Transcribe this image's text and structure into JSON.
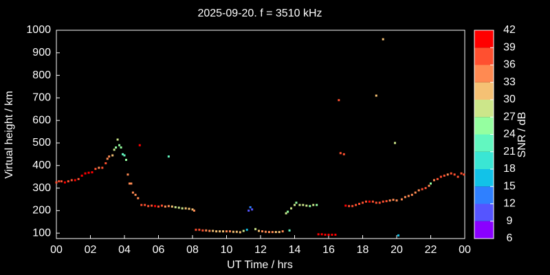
{
  "chart_data": {
    "type": "scatter",
    "title": "2025-09-20. f = 3510 kHz",
    "x_label": "UT Time / hrs",
    "y_label": "Virtual height / km",
    "xlim": [
      0,
      24
    ],
    "xticks": [
      {
        "value": 0,
        "label": "00"
      },
      {
        "value": 2,
        "label": "02"
      },
      {
        "value": 4,
        "label": "04"
      },
      {
        "value": 6,
        "label": "06"
      },
      {
        "value": 8,
        "label": "08"
      },
      10,
      12,
      14,
      16,
      18,
      20,
      22,
      {
        "value": 24,
        "label": "00"
      }
    ],
    "ylim": [
      76,
      1000
    ],
    "yticks": [
      100,
      200,
      300,
      400,
      500,
      600,
      700,
      800,
      900,
      1000
    ],
    "x": [
      0.0,
      0.15,
      0.3,
      0.5,
      0.7,
      0.9,
      1.1,
      1.3,
      1.5,
      1.7,
      1.9,
      2.1,
      2.3,
      2.5,
      2.7,
      2.9,
      3.0,
      3.1,
      3.3,
      3.4,
      3.5,
      3.6,
      3.7,
      3.8,
      3.9,
      4.0,
      4.1,
      4.2,
      4.3,
      4.4,
      4.5,
      4.65,
      4.8,
      4.9,
      5.0,
      5.2,
      5.4,
      5.6,
      5.8,
      6.0,
      6.2,
      6.4,
      6.6,
      6.6,
      6.8,
      7.0,
      7.2,
      7.4,
      7.6,
      7.8,
      8.0,
      8.1,
      8.2,
      8.4,
      8.6,
      8.8,
      9.0,
      9.2,
      9.4,
      9.6,
      9.8,
      10.0,
      10.2,
      10.4,
      10.6,
      10.8,
      11.0,
      11.2,
      11.3,
      11.4,
      11.5,
      11.7,
      11.9,
      12.1,
      12.3,
      12.5,
      12.7,
      12.9,
      13.1,
      13.3,
      13.5,
      13.6,
      13.7,
      13.8,
      14.0,
      14.1,
      14.3,
      14.5,
      14.7,
      14.9,
      15.1,
      15.3,
      15.4,
      15.6,
      15.8,
      16.0,
      16.2,
      16.4,
      16.6,
      16.7,
      16.9,
      17.0,
      17.2,
      17.4,
      17.6,
      17.8,
      18.0,
      18.2,
      18.4,
      18.6,
      18.8,
      18.8,
      19.0,
      19.2,
      19.2,
      19.4,
      19.6,
      19.8,
      19.9,
      20.0,
      20.1,
      20.3,
      20.5,
      20.7,
      20.9,
      21.1,
      21.3,
      21.5,
      21.7,
      21.9,
      22.0,
      22.2,
      22.4,
      22.6,
      22.8,
      23.0,
      23.2,
      23.4,
      23.6,
      23.8,
      23.95
    ],
    "values": [
      325,
      330,
      330,
      325,
      330,
      335,
      335,
      340,
      355,
      365,
      368,
      370,
      385,
      390,
      390,
      410,
      430,
      440,
      445,
      470,
      480,
      515,
      490,
      480,
      450,
      445,
      425,
      360,
      320,
      320,
      280,
      270,
      255,
      490,
      225,
      225,
      220,
      222,
      220,
      218,
      222,
      218,
      440,
      220,
      218,
      215,
      213,
      210,
      210,
      208,
      205,
      200,
      115,
      115,
      112,
      112,
      110,
      110,
      108,
      108,
      108,
      108,
      108,
      106,
      106,
      104,
      110,
      115,
      200,
      215,
      205,
      118,
      110,
      108,
      106,
      105,
      105,
      105,
      105,
      108,
      188,
      195,
      112,
      210,
      225,
      235,
      225,
      225,
      222,
      220,
      225,
      225,
      95,
      95,
      93,
      93,
      93,
      93,
      690,
      455,
      450,
      222,
      220,
      220,
      225,
      230,
      235,
      240,
      240,
      240,
      710,
      235,
      235,
      960,
      240,
      242,
      245,
      248,
      500,
      245,
      90,
      250,
      260,
      265,
      270,
      280,
      290,
      295,
      300,
      310,
      320,
      335,
      340,
      350,
      355,
      360,
      365,
      360,
      350,
      365,
      360
    ],
    "snr": [
      36,
      36,
      36,
      39,
      36,
      36,
      39,
      36,
      39,
      39,
      39,
      39,
      36,
      33,
      36,
      36,
      33,
      33,
      30,
      27,
      24,
      27,
      24,
      24,
      21,
      21,
      24,
      33,
      33,
      33,
      33,
      33,
      33,
      39,
      36,
      36,
      36,
      36,
      39,
      36,
      36,
      33,
      21,
      33,
      30,
      27,
      27,
      27,
      30,
      30,
      30,
      33,
      36,
      36,
      36,
      33,
      33,
      30,
      30,
      30,
      30,
      33,
      33,
      30,
      30,
      30,
      27,
      15,
      9,
      12,
      9,
      27,
      30,
      33,
      33,
      33,
      33,
      30,
      30,
      33,
      27,
      24,
      21,
      27,
      27,
      24,
      27,
      27,
      27,
      24,
      27,
      24,
      39,
      39,
      39,
      39,
      39,
      39,
      36,
      36,
      36,
      39,
      36,
      36,
      36,
      36,
      36,
      36,
      39,
      36,
      30,
      36,
      36,
      30,
      36,
      36,
      33,
      33,
      27,
      33,
      15,
      33,
      33,
      33,
      33,
      33,
      33,
      36,
      36,
      33,
      24,
      33,
      36,
      36,
      36,
      33,
      36,
      36,
      36,
      36,
      36
    ],
    "colorbar": {
      "label": "SNR / dB",
      "ticks": [
        6,
        9,
        12,
        15,
        18,
        21,
        24,
        27,
        30,
        33,
        36,
        39,
        42
      ],
      "colors": [
        "#8a00ff",
        "#5555ff",
        "#2f80ff",
        "#12c2e8",
        "#3ae6d4",
        "#62f7c0",
        "#95ffa0",
        "#cce68a",
        "#f5c174",
        "#ff8a52",
        "#ff5030",
        "#ff0000"
      ]
    }
  }
}
